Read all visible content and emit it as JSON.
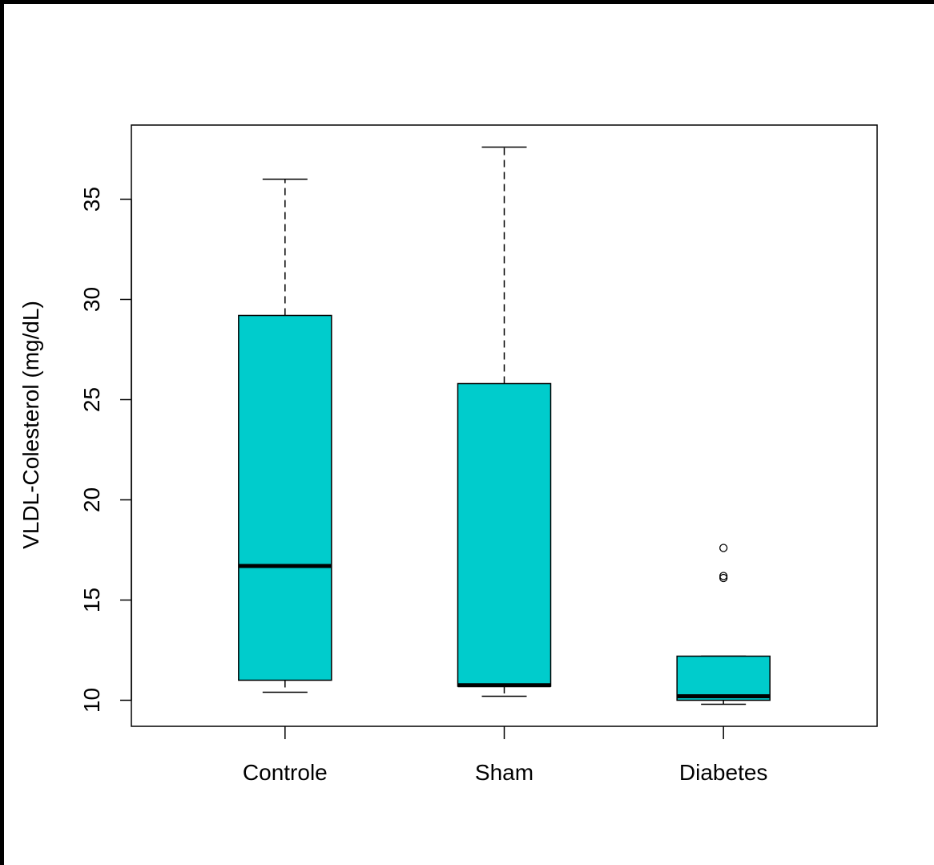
{
  "chart_data": {
    "type": "boxplot",
    "title": "",
    "xlabel": "",
    "ylabel": "VLDL-Colesterol (mg/dL)",
    "ylim": [
      8.7,
      38.7
    ],
    "yticks": [
      10,
      15,
      20,
      25,
      30,
      35
    ],
    "grid": false,
    "box_color": "#00CCCC",
    "categories": [
      "Controle",
      "Sham",
      "Diabetes"
    ],
    "boxes": [
      {
        "category": "Controle",
        "whisker_low": 10.4,
        "q1": 11.0,
        "median": 16.7,
        "q3": 29.2,
        "whisker_high": 36.0,
        "outliers": []
      },
      {
        "category": "Sham",
        "whisker_low": 10.2,
        "q1": 10.7,
        "median": 10.75,
        "q3": 25.8,
        "whisker_high": 37.6,
        "outliers": []
      },
      {
        "category": "Diabetes",
        "whisker_low": 9.8,
        "q1": 10.0,
        "median": 10.2,
        "q3": 12.2,
        "whisker_high": 12.2,
        "outliers": [
          16.1,
          16.2,
          17.6
        ]
      }
    ]
  }
}
